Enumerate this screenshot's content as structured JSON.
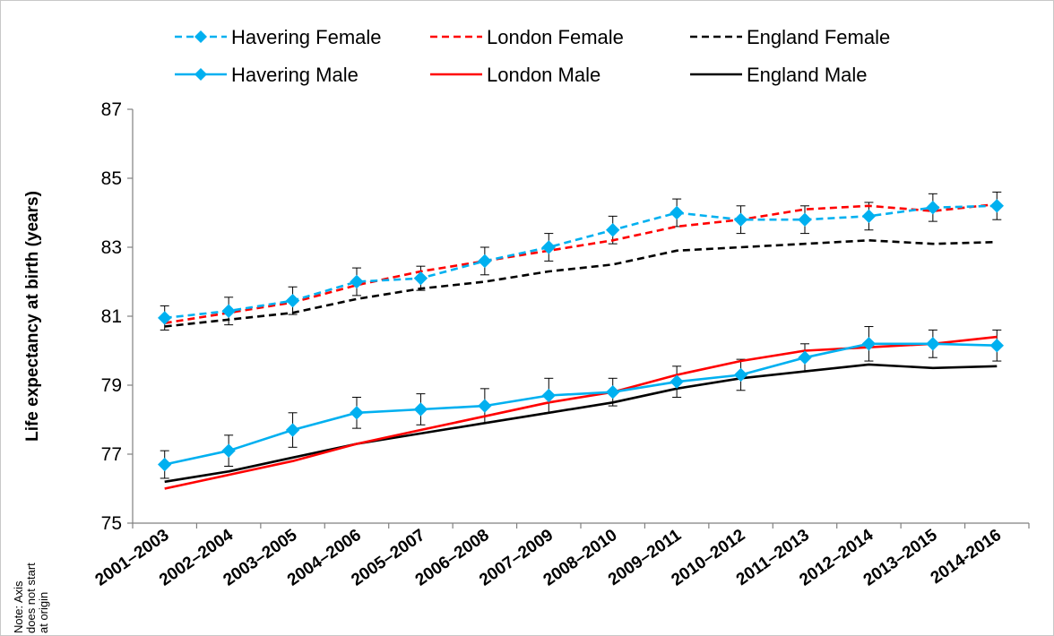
{
  "chart_data": {
    "type": "line",
    "title": "",
    "xlabel": "",
    "ylabel": "Life expectancy at birth (years)",
    "ylim": [
      75,
      87
    ],
    "yticks": [
      "75",
      "77",
      "79",
      "81",
      "83",
      "85",
      "87"
    ],
    "categories": [
      "2001–2003",
      "2002–2004",
      "2003–2005",
      "2004–2006",
      "2005–2007",
      "2006–2008",
      "2007–2009",
      "2008–2010",
      "2009–2011",
      "2010–2012",
      "2011–2013",
      "2012–2014",
      "2013–2015",
      "2014-2016"
    ],
    "grid": false,
    "legend_position": "top",
    "note": [
      "Note: Axis",
      "does not start",
      "at origin"
    ],
    "series": [
      {
        "name": "Havering Female",
        "color": "#00b0f0",
        "dash": true,
        "marker": "diamond",
        "values": [
          80.95,
          81.15,
          81.45,
          82.0,
          82.1,
          82.6,
          83.0,
          83.5,
          84.0,
          83.8,
          83.8,
          83.9,
          84.15,
          84.2
        ],
        "errors": [
          0.35,
          0.4,
          0.4,
          0.4,
          0.35,
          0.4,
          0.4,
          0.4,
          0.4,
          0.4,
          0.4,
          0.4,
          0.4,
          0.4
        ]
      },
      {
        "name": "London Female",
        "color": "#ff0000",
        "dash": true,
        "marker": "none",
        "values": [
          80.8,
          81.1,
          81.4,
          81.9,
          82.3,
          82.6,
          82.9,
          83.2,
          83.6,
          83.8,
          84.1,
          84.2,
          84.05,
          84.25
        ]
      },
      {
        "name": "England Female",
        "color": "#000000",
        "dash": true,
        "marker": "none",
        "values": [
          80.7,
          80.9,
          81.1,
          81.5,
          81.8,
          82.0,
          82.3,
          82.5,
          82.9,
          83.0,
          83.1,
          83.2,
          83.1,
          83.15
        ]
      },
      {
        "name": "Havering Male",
        "color": "#00b0f0",
        "dash": false,
        "marker": "diamond",
        "values": [
          76.7,
          77.1,
          77.7,
          78.2,
          78.3,
          78.4,
          78.7,
          78.8,
          79.1,
          79.3,
          79.8,
          80.2,
          80.2,
          80.15
        ],
        "errors": [
          0.4,
          0.45,
          0.5,
          0.45,
          0.45,
          0.5,
          0.5,
          0.4,
          0.45,
          0.45,
          0.4,
          0.5,
          0.4,
          0.45
        ]
      },
      {
        "name": "London Male",
        "color": "#ff0000",
        "dash": false,
        "marker": "none",
        "values": [
          76.0,
          76.4,
          76.8,
          77.3,
          77.7,
          78.1,
          78.5,
          78.8,
          79.3,
          79.7,
          80.0,
          80.1,
          80.2,
          80.4
        ]
      },
      {
        "name": "England Male",
        "color": "#000000",
        "dash": false,
        "marker": "none",
        "values": [
          76.2,
          76.5,
          76.9,
          77.3,
          77.6,
          77.9,
          78.2,
          78.5,
          78.9,
          79.2,
          79.4,
          79.6,
          79.5,
          79.55
        ]
      }
    ]
  }
}
